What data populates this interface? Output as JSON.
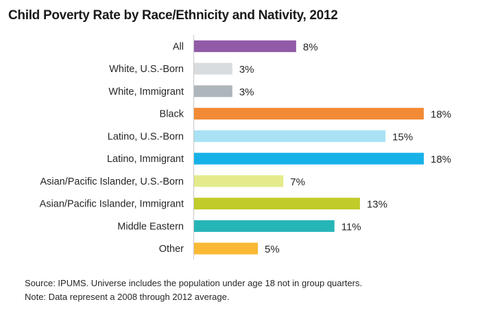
{
  "chart_data": {
    "type": "bar",
    "orientation": "horizontal",
    "title": "Child Poverty Rate by Race/Ethnicity and Nativity, 2012",
    "xlabel": "",
    "ylabel": "",
    "unit": "%",
    "xlim": [
      0,
      18
    ],
    "grid": false,
    "legend": "none",
    "categories": [
      "All",
      "White, U.S.-Born",
      "White, Immigrant",
      "Black",
      "Latino, U.S.-Born",
      "Latino, Immigrant",
      "Asian/Pacific Islander, U.S.-Born",
      "Asian/Pacific Islander, Immigrant",
      "Middle Eastern",
      "Other"
    ],
    "values": [
      8,
      3,
      3,
      18,
      15,
      18,
      7,
      13,
      11,
      5
    ],
    "value_labels": [
      "8%",
      "3%",
      "3%",
      "18%",
      "15%",
      "18%",
      "7%",
      "13%",
      "11%",
      "5%"
    ],
    "colors": [
      "#915ba8",
      "#d9dcdf",
      "#aeb5bb",
      "#f28a35",
      "#a9e2f5",
      "#16b1e8",
      "#e3eb8c",
      "#c1cb29",
      "#26b5b7",
      "#f9b934"
    ]
  },
  "notes": [
    "Source: IPUMS. Universe includes the population under age 18 not in group quarters.",
    "Note: Data represent a 2008 through 2012 average."
  ]
}
